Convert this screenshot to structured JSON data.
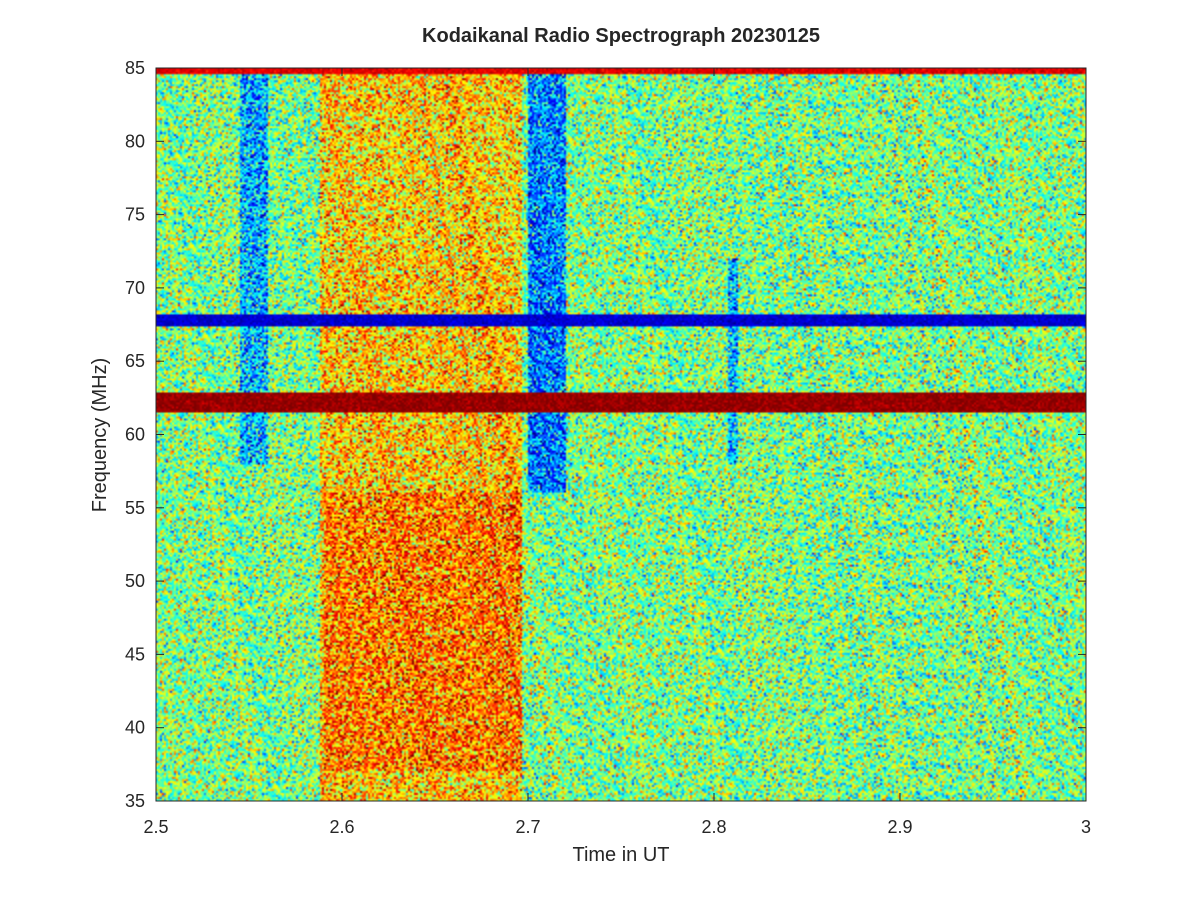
{
  "chart_data": {
    "type": "heatmap",
    "title": "Kodaikanal Radio Spectrograph  20230125",
    "xlabel": "Time in UT",
    "ylabel": "Frequency (MHz)",
    "xlim": [
      2.5,
      3
    ],
    "ylim": [
      35,
      85
    ],
    "xticks": [
      2.5,
      2.6,
      2.7,
      2.8,
      2.9,
      3
    ],
    "xtick_labels": [
      "2.5",
      "2.6",
      "2.7",
      "2.8",
      "2.9",
      "3"
    ],
    "yticks": [
      35,
      40,
      45,
      50,
      55,
      60,
      65,
      70,
      75,
      80,
      85
    ],
    "ytick_labels": [
      "35",
      "40",
      "45",
      "50",
      "55",
      "60",
      "65",
      "70",
      "75",
      "80",
      "85"
    ],
    "colormap": "jet",
    "value_range": [
      0,
      1
    ],
    "background_level": 0.5,
    "features": [
      {
        "name": "enhanced-emission-block",
        "t_start": 2.588,
        "t_end": 2.697,
        "f_start": 35,
        "f_end": 85,
        "level": 0.68
      },
      {
        "name": "enhanced-emission-core",
        "t_start": 2.59,
        "t_end": 2.697,
        "f_start": 37,
        "f_end": 56,
        "level": 0.76
      },
      {
        "name": "upper-band-enhancement",
        "t_start": 2.59,
        "t_end": 2.697,
        "f_start": 72,
        "f_end": 82,
        "level": 0.66
      },
      {
        "name": "low-intensity-column-1",
        "t_start": 2.545,
        "t_end": 2.56,
        "f_start": 58,
        "f_end": 85,
        "level": 0.3
      },
      {
        "name": "low-intensity-column-2",
        "t_start": 2.7,
        "t_end": 2.72,
        "f_start": 56,
        "f_end": 85,
        "level": 0.25
      },
      {
        "name": "low-intensity-column-3",
        "t_start": 2.807,
        "t_end": 2.813,
        "f_start": 58,
        "f_end": 72,
        "level": 0.3
      },
      {
        "name": "interference-line-high",
        "t_start": 2.5,
        "t_end": 3,
        "f_center": 62.2,
        "f_width": 0.7,
        "level": 0.98
      },
      {
        "name": "interference-line-low",
        "t_start": 2.5,
        "t_end": 3,
        "f_center": 67.8,
        "f_width": 0.45,
        "level": 0.08
      },
      {
        "name": "top-edge-line",
        "t_start": 2.5,
        "t_end": 3,
        "f_center": 84.9,
        "f_width": 0.25,
        "level": 0.9
      }
    ]
  }
}
